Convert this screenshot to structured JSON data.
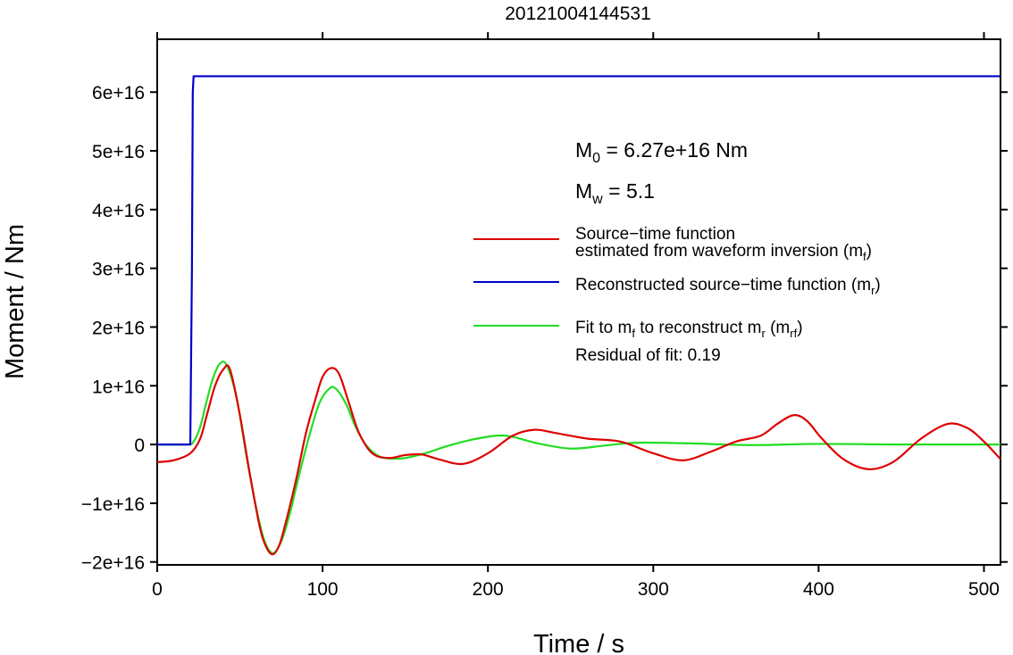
{
  "chart_data": {
    "type": "line",
    "title": "20121004144531",
    "xlabel": "Time / s",
    "ylabel": "Moment / Nm",
    "xlim": [
      0,
      510
    ],
    "ylim": [
      -20500000000000000,
      69000000000000000
    ],
    "x_ticks": [
      0,
      100,
      200,
      300,
      400,
      500
    ],
    "x_tick_labels": [
      "0",
      "100",
      "200",
      "300",
      "400",
      "500"
    ],
    "y_ticks": [
      -20000000000000000,
      -10000000000000000,
      0,
      10000000000000000,
      20000000000000000,
      30000000000000000,
      40000000000000000,
      50000000000000000,
      60000000000000000
    ],
    "y_tick_labels": [
      "−2e+16",
      "−1e+16",
      "0",
      "1e+16",
      "2e+16",
      "3e+16",
      "4e+16",
      "5e+16",
      "6e+16"
    ],
    "grid": false,
    "annotations": {
      "m0_label": "M",
      "m0_sub": "0",
      "m0_value": " = 6.27e+16 Nm",
      "mw_label": "M",
      "mw_sub": "w",
      "mw_value": " = 5.1",
      "residual": "Residual of fit: 0.19"
    },
    "legend": [
      {
        "color": "#dd0000",
        "line1": "Source−time function",
        "line2_main": "estimated from waveform inversion (m",
        "line2_sub": "f",
        "line2_end": ")"
      },
      {
        "color": "#0000cc",
        "main": "Reconstructed source−time function (m",
        "sub": "r",
        "end": ")"
      },
      {
        "color": "#22dd22",
        "main_a": "Fit to m",
        "sub_a": "f",
        "main_b": " to reconstruct m",
        "sub_b": "r",
        "main_c": " (m",
        "sub_c": "rf",
        "end": ")"
      }
    ],
    "series": [
      {
        "key": "mr",
        "color": "#0000cc",
        "x": [
          0,
          18,
          20,
          21,
          21.5,
          22,
          22.5,
          510
        ],
        "y": [
          0,
          0,
          0,
          30000000000000000,
          60000000000000000,
          62700000000000000,
          62700000000000000,
          62700000000000000
        ]
      },
      {
        "key": "mf",
        "color": "#dd0000",
        "x": [
          0,
          10,
          20,
          26,
          30,
          35,
          40,
          44,
          50,
          56,
          62,
          66,
          70,
          74,
          78,
          84,
          90,
          96,
          100,
          105,
          110,
          116,
          122,
          130,
          140,
          150,
          160,
          170,
          185,
          200,
          215,
          228,
          240,
          260,
          280,
          300,
          318,
          335,
          350,
          365,
          375,
          385,
          393,
          402,
          415,
          430,
          445,
          462,
          478,
          490,
          500,
          510
        ],
        "y": [
          -3000000000000000,
          -2700000000000000,
          -1500000000000000,
          1000000000000000,
          5000000000000000,
          10000000000000000,
          12800000000000000,
          12800000000000000,
          5000000000000000,
          -5000000000000000,
          -14000000000000000,
          -17500000000000000,
          -18700000000000000,
          -17000000000000000,
          -13000000000000000,
          -6000000000000000,
          2000000000000000,
          8000000000000000,
          11500000000000000,
          13000000000000000,
          12000000000000000,
          7000000000000000,
          2000000000000000,
          -1500000000000000,
          -2300000000000000,
          -1800000000000000,
          -1700000000000000,
          -2500000000000000,
          -3300000000000000,
          -1500000000000000,
          1500000000000000,
          2500000000000000,
          2000000000000000,
          1000000000000000,
          500000000000000,
          -1500000000000000,
          -2700000000000000,
          -1200000000000000,
          500000000000000,
          1500000000000000,
          3500000000000000,
          5000000000000000,
          4000000000000000,
          1000000000000000,
          -2500000000000000,
          -4200000000000000,
          -3000000000000000,
          1000000000000000,
          3500000000000000,
          2800000000000000,
          500000000000000,
          -2500000000000000
        ]
      },
      {
        "key": "mrf",
        "color": "#22dd22",
        "x": [
          0,
          18,
          22,
          26,
          30,
          34,
          38,
          42,
          48,
          54,
          60,
          65,
          70,
          75,
          80,
          86,
          92,
          98,
          104,
          108,
          114,
          120,
          126,
          134,
          142,
          150,
          162,
          175,
          190,
          205,
          215,
          230,
          250,
          270,
          290,
          320,
          360,
          400,
          450,
          510
        ],
        "y": [
          0,
          0,
          500000000000000,
          3000000000000000,
          7500000000000000,
          11500000000000000,
          13800000000000000,
          13500000000000000,
          8000000000000000,
          -2000000000000000,
          -11000000000000000,
          -16500000000000000,
          -18500000000000000,
          -16500000000000000,
          -12000000000000000,
          -5000000000000000,
          1500000000000000,
          7000000000000000,
          9500000000000000,
          9500000000000000,
          7000000000000000,
          3000000000000000,
          0,
          -2000000000000000,
          -2400000000000000,
          -2300000000000000,
          -1500000000000000,
          -300000000000000,
          800000000000000,
          1500000000000000,
          1300000000000000,
          200000000000000,
          -700000000000000,
          -200000000000000,
          300000000000000,
          200000000000000,
          -100000000000000,
          100000000000000,
          0,
          0
        ]
      }
    ]
  }
}
